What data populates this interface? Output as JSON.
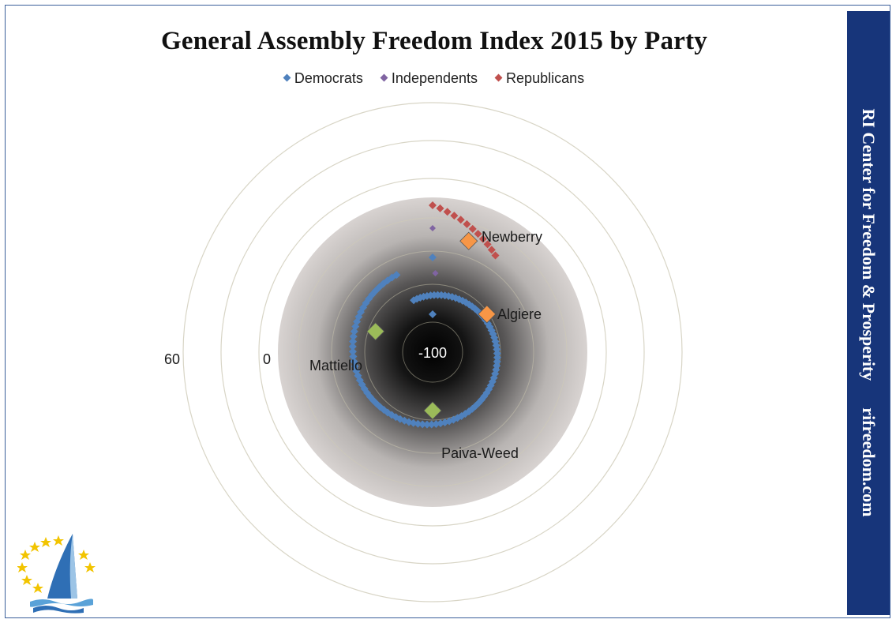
{
  "chart_data": {
    "type": "scatter",
    "subtype": "polar-spiral",
    "title": "General Assembly Freedom Index 2015 by Party",
    "legend": {
      "position": "top-center",
      "entries": [
        {
          "name": "Democrats",
          "color": "#4f81bd"
        },
        {
          "name": "Independents",
          "color": "#8064a2"
        },
        {
          "name": "Republicans",
          "color": "#c0504d"
        }
      ]
    },
    "radial_axis": {
      "range": [
        -100,
        100
      ],
      "tick_labels": [
        "-100",
        "0",
        "60"
      ]
    },
    "series": [
      {
        "name": "Democrats",
        "color": "#4f81bd",
        "count": 100
      },
      {
        "name": "Independents",
        "color": "#8064a2",
        "count": 2
      },
      {
        "name": "Republicans",
        "color": "#c0504d",
        "count": 12
      }
    ],
    "annotations": [
      {
        "label": "Newberry",
        "marker_color": "#f79646"
      },
      {
        "label": "Algiere",
        "marker_color": "#f79646"
      },
      {
        "label": "Mattiello",
        "marker_color": "#9bbb59"
      },
      {
        "label": "Paiva-Weed",
        "marker_color": "#9bbb59"
      }
    ]
  },
  "banner": {
    "org_name": "RI Center for Freedom & Prosperity",
    "website": "rifreedom.com"
  },
  "logo": {
    "icon": "sailboat-stars-logo"
  }
}
